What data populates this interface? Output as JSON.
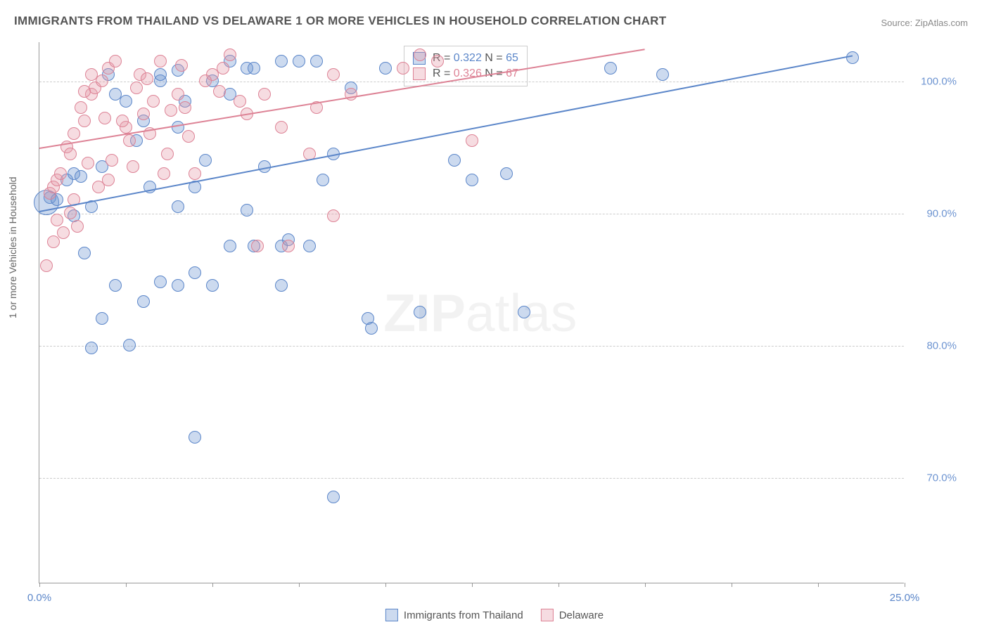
{
  "title": "IMMIGRANTS FROM THAILAND VS DELAWARE 1 OR MORE VEHICLES IN HOUSEHOLD CORRELATION CHART",
  "source": "Source: ZipAtlas.com",
  "watermark_bold": "ZIP",
  "watermark_light": "atlas",
  "y_axis_label": "1 or more Vehicles in Household",
  "chart": {
    "type": "scatter",
    "background_color": "#ffffff",
    "grid_color": "#cccccc",
    "axis_color": "#999999",
    "xlim": [
      0,
      25
    ],
    "ylim": [
      62,
      103
    ],
    "y_ticks": [
      70,
      80,
      90,
      100
    ],
    "y_tick_labels": [
      "70.0%",
      "80.0%",
      "90.0%",
      "100.0%"
    ],
    "y_tick_color": "#6d94d1",
    "x_ticks": [
      0,
      2.5,
      5,
      7.5,
      10,
      12.5,
      15,
      17.5,
      20,
      22.5,
      25
    ],
    "x_tick_labels": {
      "0": "0.0%",
      "25": "25.0%"
    },
    "x_tick_color": "#5b86c9",
    "marker_radius": 9,
    "marker_opacity": 0.45,
    "series": [
      {
        "name": "Immigrants from Thailand",
        "label": "Immigrants from Thailand",
        "color": "#6d94d1",
        "fill": "rgba(109,148,209,0.35)",
        "stroke": "#5b86c9",
        "R": 0.322,
        "N": 65,
        "regression": {
          "x0": 0,
          "y0": 90.2,
          "x1": 23.5,
          "y1": 102.0
        },
        "points": [
          [
            0.3,
            91.2
          ],
          [
            0.2,
            90.8,
            18
          ],
          [
            0.8,
            92.5
          ],
          [
            1.0,
            93.0
          ],
          [
            1.2,
            92.8
          ],
          [
            1.5,
            90.5
          ],
          [
            1.8,
            93.5
          ],
          [
            2.0,
            100.5
          ],
          [
            2.2,
            99.0
          ],
          [
            2.5,
            98.5
          ],
          [
            1.0,
            89.8
          ],
          [
            3.0,
            97.0
          ],
          [
            3.2,
            92.0
          ],
          [
            3.5,
            100.0
          ],
          [
            4.0,
            96.5
          ],
          [
            4.2,
            98.5
          ],
          [
            4.5,
            92.0
          ],
          [
            4.8,
            94.0
          ],
          [
            5.0,
            100.0
          ],
          [
            5.5,
            101.5
          ],
          [
            4.0,
            90.5
          ],
          [
            6.0,
            101.0
          ],
          [
            6.2,
            101.0
          ],
          [
            6.5,
            93.5
          ],
          [
            7.0,
            101.5
          ],
          [
            7.5,
            101.5
          ],
          [
            7.8,
            87.5
          ],
          [
            8.0,
            101.5
          ],
          [
            8.2,
            92.5
          ],
          [
            8.5,
            94.5
          ],
          [
            9.5,
            82.0
          ],
          [
            9.6,
            81.3
          ],
          [
            10.0,
            101.0
          ],
          [
            11.0,
            82.5
          ],
          [
            12.0,
            94.0
          ],
          [
            12.5,
            92.5
          ],
          [
            13.5,
            93.0
          ],
          [
            14.0,
            82.5
          ],
          [
            16.5,
            101.0
          ],
          [
            18.0,
            100.5
          ],
          [
            1.5,
            79.8
          ],
          [
            2.2,
            84.5
          ],
          [
            3.0,
            83.3
          ],
          [
            3.5,
            84.8
          ],
          [
            4.0,
            84.5
          ],
          [
            4.5,
            85.5
          ],
          [
            5.0,
            84.5
          ],
          [
            6.2,
            87.5
          ],
          [
            7.0,
            87.5
          ],
          [
            7.0,
            84.5
          ],
          [
            7.2,
            88.0
          ],
          [
            8.5,
            68.5
          ],
          [
            4.5,
            73.0
          ],
          [
            6.0,
            90.2
          ],
          [
            23.5,
            101.8
          ],
          [
            5.5,
            87.5
          ],
          [
            3.5,
            100.5
          ],
          [
            2.8,
            95.5
          ],
          [
            0.5,
            91.0
          ],
          [
            4.0,
            100.8
          ],
          [
            1.3,
            87.0
          ],
          [
            2.6,
            80.0
          ],
          [
            1.8,
            82.0
          ],
          [
            5.5,
            99.0
          ],
          [
            9.0,
            99.5
          ]
        ]
      },
      {
        "name": "Delaware",
        "label": "Delaware",
        "color": "#e49aa8",
        "fill": "rgba(228,154,168,0.35)",
        "stroke": "#dd8295",
        "R": 0.326,
        "N": 67,
        "regression": {
          "x0": 0,
          "y0": 95.0,
          "x1": 17.5,
          "y1": 102.5
        },
        "points": [
          [
            0.3,
            91.5
          ],
          [
            0.4,
            92.0
          ],
          [
            0.5,
            92.5
          ],
          [
            0.6,
            93.0
          ],
          [
            0.8,
            95.0
          ],
          [
            0.9,
            94.5
          ],
          [
            1.0,
            96.0
          ],
          [
            1.2,
            98.0
          ],
          [
            1.3,
            97.0
          ],
          [
            1.5,
            99.0
          ],
          [
            1.6,
            99.5
          ],
          [
            1.8,
            100.0
          ],
          [
            2.0,
            101.0
          ],
          [
            2.2,
            101.5
          ],
          [
            2.5,
            96.5
          ],
          [
            2.6,
            95.5
          ],
          [
            2.8,
            99.5
          ],
          [
            3.0,
            97.5
          ],
          [
            3.2,
            96.0
          ],
          [
            3.5,
            101.5
          ],
          [
            3.7,
            94.5
          ],
          [
            4.0,
            99.0
          ],
          [
            4.2,
            98.0
          ],
          [
            4.5,
            93.0
          ],
          [
            5.0,
            100.5
          ],
          [
            5.2,
            99.2
          ],
          [
            5.5,
            102.0
          ],
          [
            6.0,
            97.5
          ],
          [
            6.5,
            99.0
          ],
          [
            7.0,
            96.5
          ],
          [
            7.8,
            94.5
          ],
          [
            8.0,
            98.0
          ],
          [
            8.5,
            100.5
          ],
          [
            9.0,
            99.0
          ],
          [
            10.5,
            101.0
          ],
          [
            11.0,
            102.0
          ],
          [
            11.5,
            101.5
          ],
          [
            12.5,
            95.5
          ],
          [
            0.2,
            86.0
          ],
          [
            0.5,
            89.5
          ],
          [
            1.0,
            91.0
          ],
          [
            1.1,
            89.0
          ],
          [
            1.4,
            93.8
          ],
          [
            1.7,
            92.0
          ],
          [
            2.1,
            94.0
          ],
          [
            2.4,
            97.0
          ],
          [
            2.9,
            100.5
          ],
          [
            3.3,
            98.5
          ],
          [
            3.8,
            97.8
          ],
          [
            4.3,
            95.8
          ],
          [
            4.8,
            100.0
          ],
          [
            5.3,
            101.0
          ],
          [
            5.8,
            98.5
          ],
          [
            6.3,
            87.5
          ],
          [
            7.2,
            87.5
          ],
          [
            8.5,
            89.8
          ],
          [
            0.4,
            87.8
          ],
          [
            0.7,
            88.5
          ],
          [
            0.9,
            90.0
          ],
          [
            1.3,
            99.2
          ],
          [
            1.9,
            97.2
          ],
          [
            3.1,
            100.2
          ],
          [
            4.1,
            101.2
          ],
          [
            1.5,
            100.5
          ],
          [
            2.0,
            92.5
          ],
          [
            2.7,
            93.5
          ],
          [
            3.6,
            93.0
          ]
        ]
      }
    ]
  },
  "stat_box": {
    "rows": [
      {
        "swatch": "thailand",
        "r_label": "R = ",
        "r_val": "0.322",
        "n_label": "   N = ",
        "n_val": "65"
      },
      {
        "swatch": "delaware",
        "r_label": "R = ",
        "r_val": "0.326",
        "n_label": "   N = ",
        "n_val": "67"
      }
    ]
  },
  "legend": {
    "items": [
      {
        "key": "thailand",
        "label": "Immigrants from Thailand"
      },
      {
        "key": "delaware",
        "label": "Delaware"
      }
    ]
  }
}
